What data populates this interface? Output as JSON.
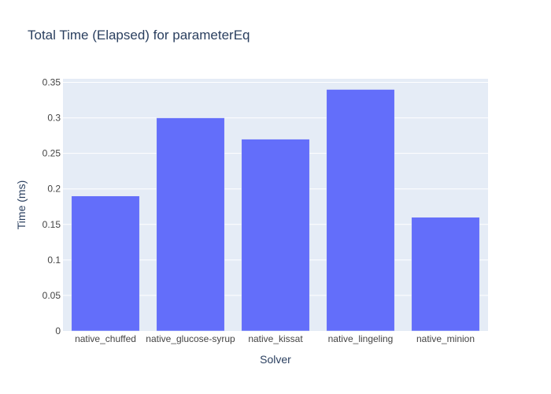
{
  "chart_data": {
    "type": "bar",
    "title": "Total Time (Elapsed) for parameterEq",
    "xlabel": "Solver",
    "ylabel": "Time (ms)",
    "categories": [
      "native_chuffed",
      "native_glucose-syrup",
      "native_kissat",
      "native_lingeling",
      "native_minion"
    ],
    "values": [
      0.19,
      0.3,
      0.27,
      0.34,
      0.16
    ],
    "ylim": [
      0,
      0.355
    ],
    "yticks": [
      0,
      0.05,
      0.1,
      0.15,
      0.2,
      0.25,
      0.3,
      0.35
    ],
    "ytick_labels": [
      "0",
      "0.05",
      "0.1",
      "0.15",
      "0.2",
      "0.25",
      "0.3",
      "0.35"
    ],
    "grid": true,
    "legend": "none"
  },
  "colors": {
    "bar": "#636efa",
    "plot_bg": "#e5ecf6",
    "grid": "#ffffff",
    "text": "#2a3f5f",
    "tick_text": "#444444"
  }
}
